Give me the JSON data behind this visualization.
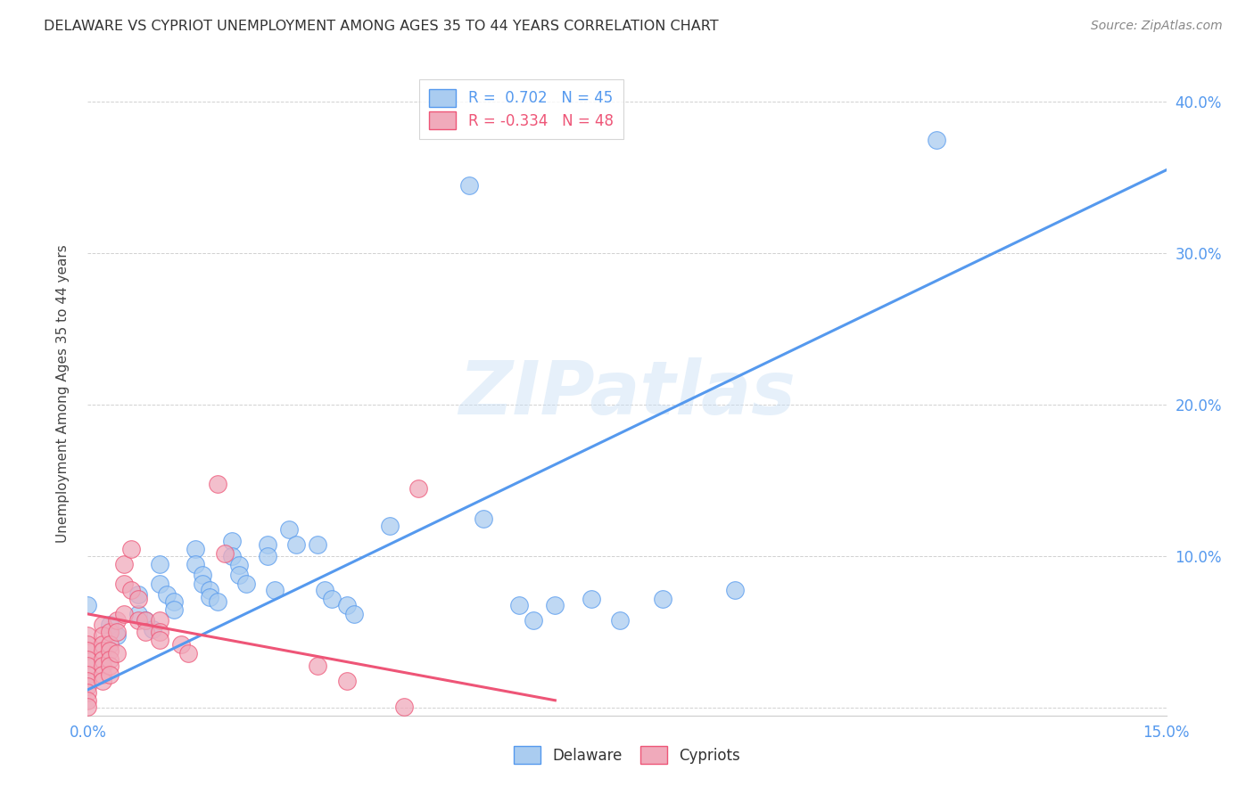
{
  "title": "DELAWARE VS CYPRIOT UNEMPLOYMENT AMONG AGES 35 TO 44 YEARS CORRELATION CHART",
  "source": "Source: ZipAtlas.com",
  "ylabel": "Unemployment Among Ages 35 to 44 years",
  "xlim": [
    0.0,
    0.15
  ],
  "ylim": [
    -0.005,
    0.42
  ],
  "xticks": [
    0.0,
    0.03,
    0.06,
    0.09,
    0.12,
    0.15
  ],
  "yticks": [
    0.0,
    0.1,
    0.2,
    0.3,
    0.4
  ],
  "ytick_labels": [
    "",
    "10.0%",
    "20.0%",
    "30.0%",
    "40.0%"
  ],
  "xtick_labels": [
    "0.0%",
    "",
    "",
    "",
    "",
    "15.0%"
  ],
  "delaware_R": 0.702,
  "delaware_N": 45,
  "cypriot_R": -0.334,
  "cypriot_N": 48,
  "delaware_color": "#aaccf0",
  "cypriot_color": "#f0aabb",
  "delaware_line_color": "#5599ee",
  "cypriot_line_color": "#ee5577",
  "watermark": "ZIPatlas",
  "background_color": "#ffffff",
  "delaware_scatter": [
    [
      0.0,
      0.068
    ],
    [
      0.003,
      0.055
    ],
    [
      0.004,
      0.048
    ],
    [
      0.007,
      0.075
    ],
    [
      0.007,
      0.062
    ],
    [
      0.008,
      0.058
    ],
    [
      0.009,
      0.052
    ],
    [
      0.01,
      0.095
    ],
    [
      0.01,
      0.082
    ],
    [
      0.011,
      0.075
    ],
    [
      0.012,
      0.07
    ],
    [
      0.012,
      0.065
    ],
    [
      0.015,
      0.105
    ],
    [
      0.015,
      0.095
    ],
    [
      0.016,
      0.088
    ],
    [
      0.016,
      0.082
    ],
    [
      0.017,
      0.078
    ],
    [
      0.017,
      0.073
    ],
    [
      0.018,
      0.07
    ],
    [
      0.02,
      0.11
    ],
    [
      0.02,
      0.1
    ],
    [
      0.021,
      0.094
    ],
    [
      0.021,
      0.088
    ],
    [
      0.022,
      0.082
    ],
    [
      0.025,
      0.108
    ],
    [
      0.025,
      0.1
    ],
    [
      0.026,
      0.078
    ],
    [
      0.028,
      0.118
    ],
    [
      0.029,
      0.108
    ],
    [
      0.032,
      0.108
    ],
    [
      0.033,
      0.078
    ],
    [
      0.034,
      0.072
    ],
    [
      0.036,
      0.068
    ],
    [
      0.037,
      0.062
    ],
    [
      0.042,
      0.12
    ],
    [
      0.053,
      0.345
    ],
    [
      0.055,
      0.125
    ],
    [
      0.06,
      0.068
    ],
    [
      0.062,
      0.058
    ],
    [
      0.065,
      0.068
    ],
    [
      0.07,
      0.072
    ],
    [
      0.074,
      0.058
    ],
    [
      0.08,
      0.072
    ],
    [
      0.09,
      0.078
    ],
    [
      0.118,
      0.375
    ]
  ],
  "cypriot_scatter": [
    [
      0.0,
      0.048
    ],
    [
      0.0,
      0.042
    ],
    [
      0.0,
      0.038
    ],
    [
      0.0,
      0.032
    ],
    [
      0.0,
      0.028
    ],
    [
      0.0,
      0.022
    ],
    [
      0.0,
      0.018
    ],
    [
      0.0,
      0.014
    ],
    [
      0.0,
      0.01
    ],
    [
      0.0,
      0.005
    ],
    [
      0.0,
      0.001
    ],
    [
      0.002,
      0.055
    ],
    [
      0.002,
      0.048
    ],
    [
      0.002,
      0.042
    ],
    [
      0.002,
      0.038
    ],
    [
      0.002,
      0.032
    ],
    [
      0.002,
      0.028
    ],
    [
      0.002,
      0.022
    ],
    [
      0.002,
      0.018
    ],
    [
      0.003,
      0.05
    ],
    [
      0.003,
      0.042
    ],
    [
      0.003,
      0.038
    ],
    [
      0.003,
      0.032
    ],
    [
      0.003,
      0.028
    ],
    [
      0.003,
      0.022
    ],
    [
      0.004,
      0.058
    ],
    [
      0.004,
      0.05
    ],
    [
      0.004,
      0.036
    ],
    [
      0.005,
      0.095
    ],
    [
      0.005,
      0.082
    ],
    [
      0.005,
      0.062
    ],
    [
      0.006,
      0.105
    ],
    [
      0.006,
      0.078
    ],
    [
      0.007,
      0.072
    ],
    [
      0.007,
      0.058
    ],
    [
      0.008,
      0.058
    ],
    [
      0.008,
      0.05
    ],
    [
      0.01,
      0.058
    ],
    [
      0.01,
      0.05
    ],
    [
      0.01,
      0.045
    ],
    [
      0.013,
      0.042
    ],
    [
      0.014,
      0.036
    ],
    [
      0.018,
      0.148
    ],
    [
      0.019,
      0.102
    ],
    [
      0.032,
      0.028
    ],
    [
      0.036,
      0.018
    ],
    [
      0.044,
      0.001
    ],
    [
      0.046,
      0.145
    ]
  ],
  "delaware_trendline": [
    [
      0.0,
      0.012
    ],
    [
      0.15,
      0.355
    ]
  ],
  "cypriot_trendline": [
    [
      0.0,
      0.062
    ],
    [
      0.065,
      0.005
    ]
  ]
}
